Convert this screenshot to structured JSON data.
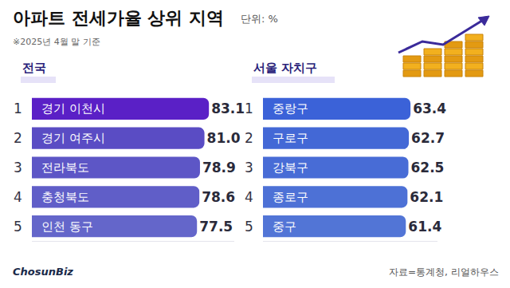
{
  "title": "아파트 전세가율 상위 지역",
  "subtitle": "단위: %",
  "note": "※2025년 4월 말 기준",
  "source": "자료=통계청, 리얼하우스",
  "brand": "ChosunBiz",
  "chart_data": [
    {
      "type": "bar",
      "title": "전국",
      "orientation": "horizontal",
      "categories": [
        "경기 이천시",
        "경기 여주시",
        "전라북도",
        "충청북도",
        "인천 동구"
      ],
      "ranks": [
        1,
        2,
        3,
        4,
        5
      ],
      "values": [
        83.1,
        81.0,
        78.9,
        78.6,
        77.5
      ],
      "value_labels": [
        "83.1",
        "81.0",
        "78.9",
        "78.6",
        "77.5"
      ],
      "colors": [
        "#5a20c6",
        "#5a4cc4",
        "#5d56c6",
        "#605ec8",
        "#6466ca"
      ],
      "xlim": [
        0,
        95
      ],
      "data_labels": true,
      "tick_labels": false
    },
    {
      "type": "bar",
      "title": "서울 자치구",
      "orientation": "horizontal",
      "categories": [
        "중랑구",
        "구로구",
        "강북구",
        "종로구",
        "중구"
      ],
      "ranks": [
        1,
        2,
        3,
        4,
        5
      ],
      "values": [
        63.4,
        62.7,
        62.5,
        62.1,
        61.4
      ],
      "value_labels": [
        "63.4",
        "62.7",
        "62.5",
        "62.1",
        "61.4"
      ],
      "colors": [
        "#3b62d8",
        "#4368d6",
        "#486cd6",
        "#4d71d6",
        "#5275d6"
      ],
      "xlim": [
        0,
        75
      ],
      "data_labels": true,
      "tick_labels": false
    }
  ]
}
